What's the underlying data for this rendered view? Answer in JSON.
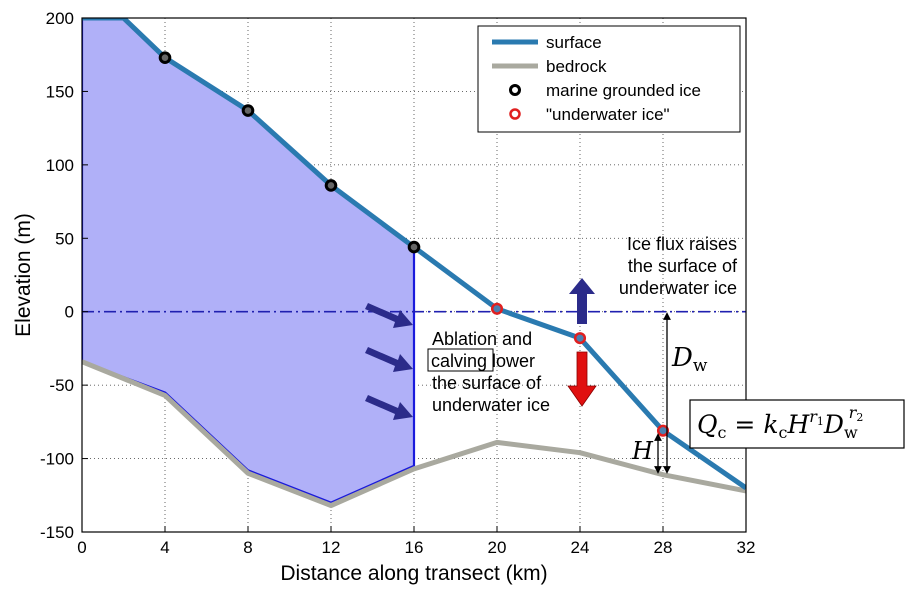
{
  "chart_data": {
    "type": "line",
    "xlabel": "Distance along transect (km)",
    "ylabel": "Elevation (m)",
    "xlim": [
      0,
      32
    ],
    "ylim": [
      -150,
      200
    ],
    "xticks": [
      0,
      4,
      8,
      12,
      16,
      20,
      24,
      28,
      32
    ],
    "yticks": [
      -150,
      -100,
      -50,
      0,
      50,
      100,
      150,
      200
    ],
    "grid": true,
    "legend_position": "top-right",
    "series": [
      {
        "name": "surface",
        "color": "#2a7ab0",
        "x": [
          0,
          2,
          4,
          8,
          12,
          16,
          20,
          24,
          28,
          32
        ],
        "y": [
          200,
          200,
          173,
          137,
          86,
          44,
          2,
          -18,
          -81,
          -120
        ]
      },
      {
        "name": "bedrock",
        "color": "#a9a99f",
        "x": [
          0,
          4,
          8,
          12,
          16,
          20,
          24,
          28,
          32
        ],
        "y": [
          -34,
          -57,
          -110,
          -132,
          -107,
          -89,
          -96,
          -111,
          -122
        ]
      },
      {
        "name": "marine grounded ice",
        "color": "#000000",
        "marker": "circle",
        "x": [
          4,
          8,
          12,
          16
        ],
        "y": [
          173,
          137,
          86,
          44
        ]
      },
      {
        "name": "\"underwater ice\"",
        "color": "#e02020",
        "marker": "circle",
        "x": [
          20,
          24,
          28
        ],
        "y": [
          2,
          -18,
          -81
        ]
      }
    ],
    "grounded_region": {
      "color": "#b0b0f8",
      "edge_color": "#1a1adc",
      "x": [
        0,
        0,
        2,
        4,
        8,
        12,
        16,
        16,
        12,
        8,
        4,
        0
      ],
      "y": [
        -34,
        200,
        200,
        173,
        137,
        86,
        44,
        -105,
        -130,
        -108,
        -55,
        -34
      ]
    },
    "sea_level": {
      "y": 0,
      "color": "#2020b0",
      "style": "dash-dot"
    },
    "annotations": {
      "flux": [
        "Ice flux raises",
        "the surface of",
        "underwater ice"
      ],
      "ablation_1": "Ablation and",
      "calving": "calving",
      "ablation_2": " lower",
      "ablation_3": "the surface of",
      "ablation_4": "underwater ice",
      "dw": "D",
      "dw_sub": "w",
      "h": "H"
    },
    "formula": {
      "lhs": "Q",
      "lhs_sub": "c",
      "eq": " = ",
      "k": "k",
      "k_sub": "c",
      "h": "H",
      "r1": "r",
      "r1_sub": "1",
      "d": "D",
      "d_sub": "w",
      "r2": "r",
      "r2_sub": "2"
    }
  }
}
